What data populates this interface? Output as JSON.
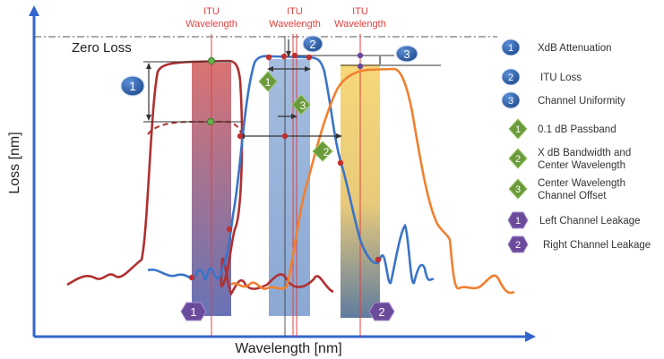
{
  "axes": {
    "xlabel": "Wavelength [nm]",
    "ylabel": "Loss [nm]"
  },
  "zero_loss": "Zero Loss",
  "itu_labels": [
    {
      "line1": "ITU",
      "line2": "Wavelength"
    },
    {
      "line1": "ITU",
      "line2": "Wavelength"
    },
    {
      "line1": "ITU",
      "line2": "Wavelength"
    }
  ],
  "markers": {
    "circle_1": "1",
    "circle_2": "2",
    "circle_3": "3",
    "diamond_1": "1",
    "diamond_2": "2",
    "diamond_3": "3",
    "hex_1": "1",
    "hex_2": "2"
  },
  "legend": [
    {
      "shape": "circle",
      "num": "1",
      "lines": [
        "XdB Attenuation"
      ]
    },
    {
      "shape": "circle",
      "num": "2",
      "lines": [
        "ITU Loss"
      ]
    },
    {
      "shape": "circle",
      "num": "3",
      "lines": [
        "Channel Uniformity"
      ]
    },
    {
      "shape": "diamond",
      "num": "1",
      "lines": [
        "0.1 dB Passband"
      ]
    },
    {
      "shape": "diamond",
      "num": "2",
      "lines": [
        "X dB Bandwidth and",
        "Center Wavelength"
      ]
    },
    {
      "shape": "diamond",
      "num": "3",
      "lines": [
        "Center Wavelength",
        "Channel Offset"
      ]
    },
    {
      "shape": "hexagon",
      "num": "1",
      "lines": [
        "Left Channel Leakage"
      ]
    },
    {
      "shape": "hexagon",
      "num": "2",
      "lines": [
        "Right Channel Leakage"
      ]
    }
  ],
  "colors": {
    "axis": "#3366cc",
    "red_curve": "#b03030",
    "blue_curve": "#3a74c8",
    "orange_curve": "#f08030",
    "circle_fill": "#2e5fa8",
    "diamond_fill": "#6a9a3a",
    "hex_fill": "#6a4a9a",
    "itu_line": "#e04040"
  }
}
